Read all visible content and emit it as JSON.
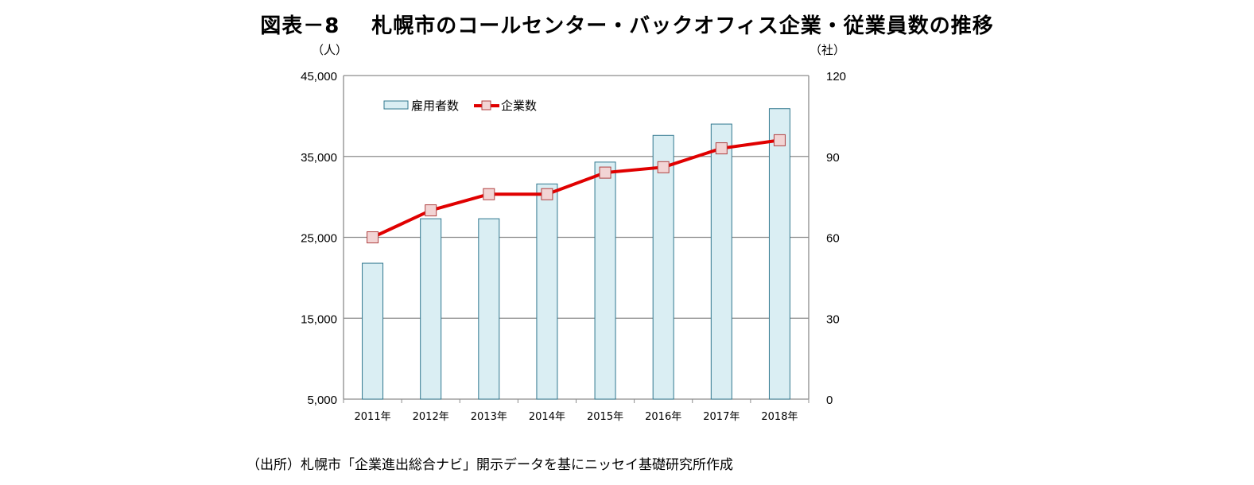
{
  "title": {
    "number": "図表－8",
    "text": "札幌市のコールセンター・バックオフィス企業・従業員数の推移"
  },
  "source": "（出所）札幌市「企業進出総合ナビ」開示データを基にニッセイ基礎研究所作成",
  "chart_data": {
    "type": "bar+line",
    "categories": [
      "2011年",
      "2012年",
      "2013年",
      "2014年",
      "2015年",
      "2016年",
      "2017年",
      "2018年"
    ],
    "series": [
      {
        "name": "雇用者数",
        "type": "bar",
        "axis": "left",
        "values": [
          21800,
          27300,
          27300,
          31600,
          34300,
          37600,
          39000,
          40900
        ],
        "color": "#daeef3",
        "edge": "#31788f"
      },
      {
        "name": "企業数",
        "type": "line",
        "axis": "right",
        "values": [
          60,
          70,
          76,
          76,
          84,
          86,
          93,
          96
        ],
        "color": "#e00000",
        "marker": "square",
        "marker_color": "#f2d4d4"
      }
    ],
    "y_left": {
      "unit": "（人）",
      "min": 5000,
      "max": 45000,
      "ticks": [
        5000,
        15000,
        25000,
        35000,
        45000
      ],
      "tick_labels": [
        "5,000",
        "15,000",
        "25,000",
        "35,000",
        "45,000"
      ]
    },
    "y_right": {
      "unit": "（社）",
      "min": 0,
      "max": 120,
      "ticks": [
        0,
        30,
        60,
        90,
        120
      ],
      "tick_labels": [
        "0",
        "30",
        "60",
        "90",
        "120"
      ]
    },
    "grid": true,
    "legend": "top-left"
  }
}
